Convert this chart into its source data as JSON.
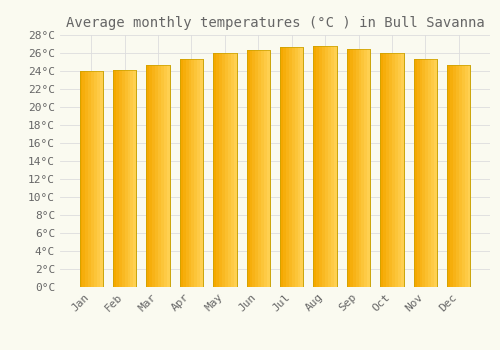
{
  "title": "Average monthly temperatures (°C ) in Bull Savanna",
  "months": [
    "Jan",
    "Feb",
    "Mar",
    "Apr",
    "May",
    "Jun",
    "Jul",
    "Aug",
    "Sep",
    "Oct",
    "Nov",
    "Dec"
  ],
  "values": [
    24.0,
    24.1,
    24.7,
    25.3,
    26.0,
    26.3,
    26.7,
    26.8,
    26.4,
    26.0,
    25.3,
    24.7
  ],
  "bar_color_left": "#F5A800",
  "bar_color_right": "#FFD050",
  "bar_edge_color": "#C8A000",
  "background_color": "#FAFAF0",
  "grid_color": "#DDDDDD",
  "text_color": "#666666",
  "ylim": [
    0,
    28
  ],
  "ytick_interval": 2,
  "title_fontsize": 10,
  "tick_fontsize": 8,
  "font_family": "monospace"
}
